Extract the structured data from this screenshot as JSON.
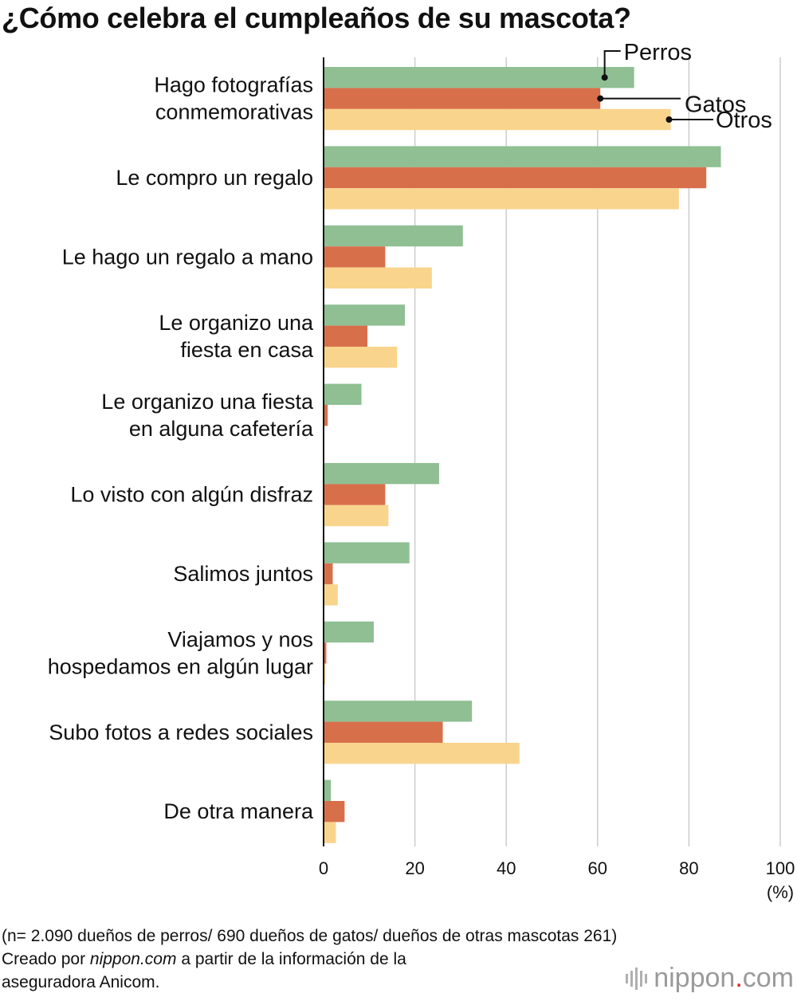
{
  "title": "¿Cómo celebra el cumpleaños de su mascota?",
  "chart_data": {
    "type": "bar",
    "orientation": "horizontal",
    "title": "¿Cómo celebra el cumpleaños de su mascota?",
    "categories": [
      [
        "Hago fotografías",
        "conmemorativas"
      ],
      [
        "Le compro un regalo"
      ],
      [
        "Le hago un regalo a mano"
      ],
      [
        "Le organizo una",
        "fiesta en casa"
      ],
      [
        "Le organizo una fiesta",
        "en alguna cafetería"
      ],
      [
        "Lo visto con algún disfraz"
      ],
      [
        "Salimos juntos"
      ],
      [
        "Viajamos y nos",
        "hospedamos en algún lugar"
      ],
      [
        "Subo fotos a redes sociales"
      ],
      [
        "De otra manera"
      ]
    ],
    "series": [
      {
        "name": "Perros",
        "color": "#8fbf93",
        "values": [
          68,
          87,
          30.5,
          17.8,
          8.3,
          25.3,
          18.8,
          11,
          32.5,
          1.6
        ]
      },
      {
        "name": "Gatos",
        "color": "#d86f4b",
        "values": [
          60.6,
          83.8,
          13.5,
          9.6,
          0.9,
          13.5,
          2,
          0.6,
          26.1,
          4.6
        ]
      },
      {
        "name": "Otros",
        "color": "#f9d48c",
        "values": [
          76,
          77.8,
          23.7,
          16.1,
          0,
          14.2,
          3.1,
          0.4,
          42.9,
          2.7
        ]
      }
    ],
    "xlim": [
      0,
      100
    ],
    "xticks": [
      0,
      20,
      40,
      60,
      80,
      100
    ],
    "xlabel": "(%)",
    "grid": true,
    "legend": "inline-annotations-top"
  },
  "footnote": {
    "line1": "(n= 2.090 dueños de perros/ 690 dueños de gatos/ dueños de otras mascotas 261)",
    "line2_pre": "Creado por ",
    "line2_italic": "nippon.com",
    "line2_post": " a partir de la información de la",
    "line3": "aseguradora Anicom."
  },
  "logo": {
    "name": "nippon",
    "dot": ".",
    "suffix": "com"
  }
}
